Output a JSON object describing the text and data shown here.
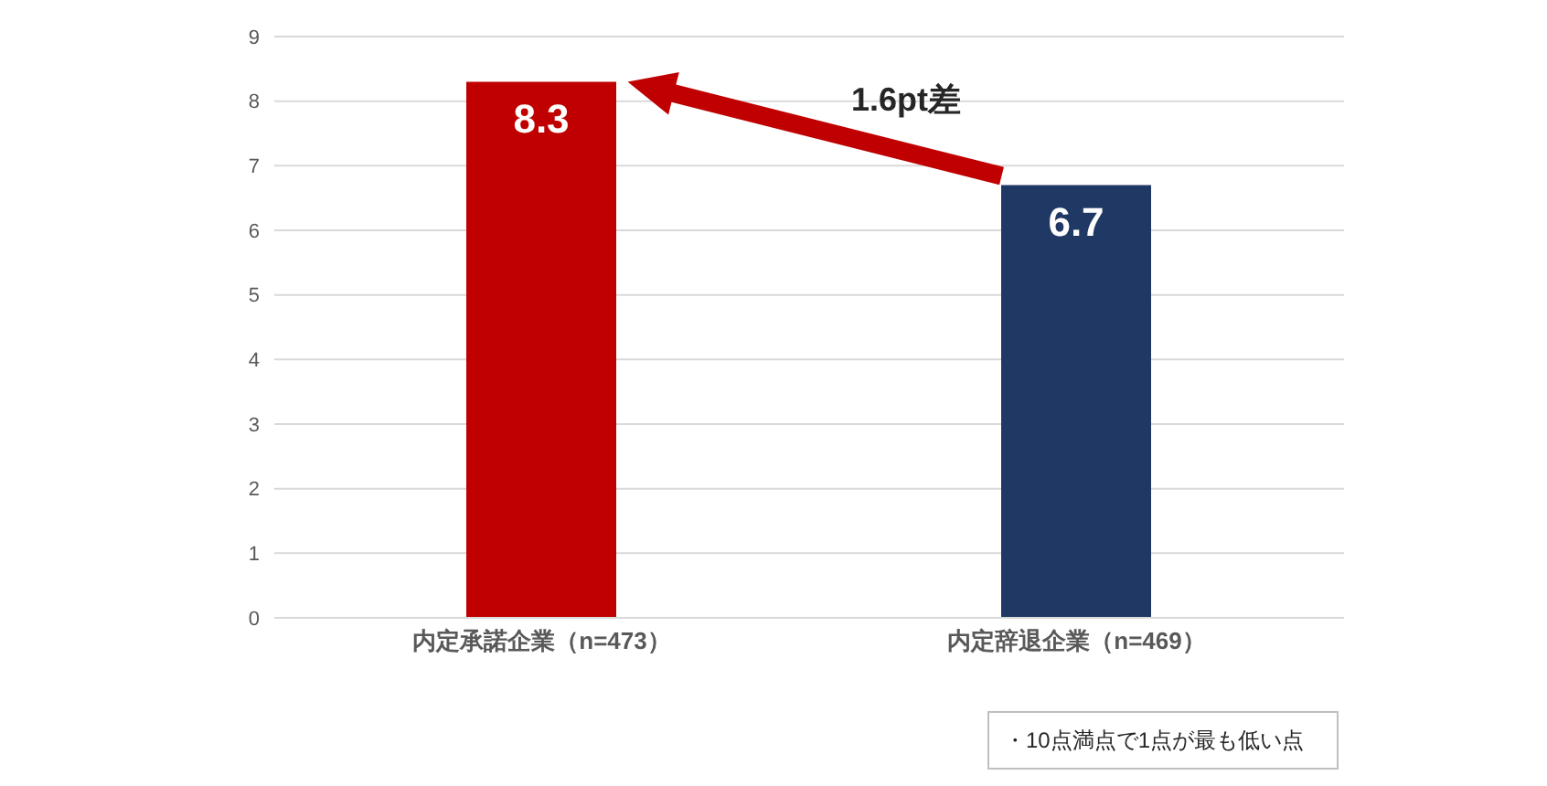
{
  "chart_data": {
    "type": "bar",
    "categories": [
      "内定承諾企業（n=473）",
      "内定辞退企業（n=469）"
    ],
    "values": [
      8.3,
      6.7
    ],
    "colors": [
      "#c00000",
      "#1f3864"
    ],
    "ylim": [
      0,
      9
    ],
    "yticks": [
      0,
      1,
      2,
      3,
      4,
      5,
      6,
      7,
      8,
      9
    ],
    "grid": "y",
    "data_labels": true,
    "annotations": [
      "1.6pt差",
      "・10点満点で1点が最も低い点"
    ]
  }
}
